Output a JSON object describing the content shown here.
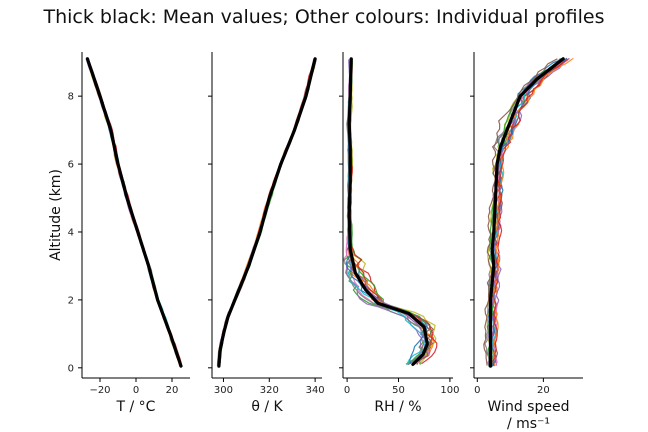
{
  "title": "Thick black: Mean values; Other colours: Individual profiles",
  "chart_data": [
    {
      "type": "line",
      "xlabel": "T / °C",
      "ylabel": "Altitude (km)",
      "xlim": [
        -30,
        30
      ],
      "ylim": [
        -0.3,
        9.3
      ],
      "xticks": [
        -20,
        0,
        20
      ],
      "yticks": [
        0,
        2,
        4,
        6,
        8
      ],
      "mean_profile": {
        "altitude": [
          0.05,
          1.0,
          2.0,
          3.0,
          4.0,
          5.0,
          6.0,
          7.0,
          8.0,
          9.1
        ],
        "x": [
          25,
          19,
          12,
          7,
          1,
          -5,
          -10,
          -14,
          -20,
          -27
        ]
      }
    },
    {
      "type": "line",
      "xlabel": "θ / K",
      "ylabel": "",
      "xlim": [
        295,
        343
      ],
      "ylim": [
        -0.3,
        9.3
      ],
      "xticks": [
        300,
        320,
        340
      ],
      "mean_profile": {
        "altitude": [
          0.05,
          0.5,
          1.0,
          1.5,
          2.0,
          3.0,
          4.0,
          5.0,
          6.0,
          7.0,
          8.0,
          9.1
        ],
        "x": [
          298,
          298.5,
          300,
          302,
          305,
          311,
          316,
          320,
          325,
          331,
          336,
          340
        ]
      }
    },
    {
      "type": "line",
      "xlabel": "RH / %",
      "ylabel": "",
      "xlim": [
        -4,
        103
      ],
      "ylim": [
        -0.3,
        9.3
      ],
      "xticks": [
        0,
        50,
        100
      ],
      "mean_profile": {
        "altitude": [
          0.1,
          0.4,
          0.7,
          1.2,
          1.6,
          1.9,
          2.3,
          2.8,
          3.5,
          4.5,
          5.5,
          6.5,
          7.2,
          8.0,
          9.1
        ],
        "x": [
          64,
          74,
          78,
          75,
          60,
          30,
          18,
          8,
          3,
          2,
          3,
          3,
          2,
          3,
          4
        ]
      }
    },
    {
      "type": "line",
      "xlabel": "Wind speed\n/ ms⁻¹",
      "ylabel": "",
      "xlim": [
        -1,
        32
      ],
      "ylim": [
        -0.3,
        9.3
      ],
      "xticks": [
        0,
        20
      ],
      "mean_profile": {
        "altitude": [
          0.05,
          1.0,
          2.0,
          3.0,
          3.5,
          4.0,
          5.0,
          6.0,
          6.5,
          7.0,
          8.0,
          8.5,
          9.1
        ],
        "x": [
          4,
          4,
          4,
          5,
          4.5,
          5,
          5.5,
          6,
          7,
          9,
          13,
          18,
          26
        ]
      }
    }
  ],
  "colors": {
    "mean_line": "#000000",
    "profile_palette": [
      "#1f77b4",
      "#ff7f0e",
      "#2ca02c",
      "#d62728",
      "#9467bd",
      "#8c564b",
      "#e377c2",
      "#7f7f7f",
      "#bcbd22",
      "#17becf"
    ]
  }
}
